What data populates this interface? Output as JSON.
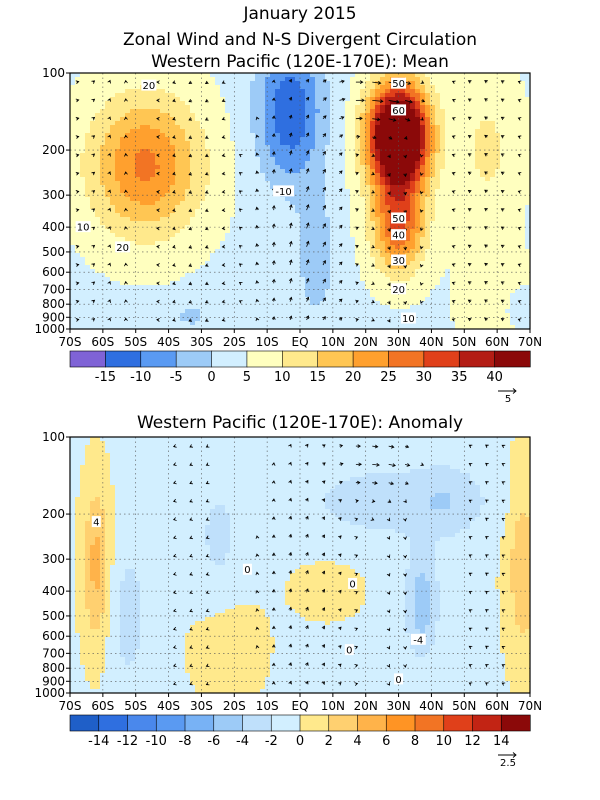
{
  "figure": {
    "title_line1": "January 2015",
    "title_line2": "Zonal Wind and N-S Divergent Circulation"
  },
  "chart_data": [
    {
      "type": "heatmap",
      "title": "Western Pacific (120E-170E): Mean",
      "x_ticks": [
        "70S",
        "60S",
        "50S",
        "40S",
        "30S",
        "20S",
        "10S",
        "EQ",
        "10N",
        "20N",
        "30N",
        "40N",
        "50N",
        "60N",
        "70N"
      ],
      "x_range": [
        -70,
        70
      ],
      "y_ticks": [
        100,
        200,
        300,
        400,
        500,
        600,
        700,
        800,
        900,
        1000
      ],
      "y_scale": "log",
      "y_range": [
        100,
        1000
      ],
      "colorbar_levels": [
        -20,
        -15,
        -10,
        -5,
        0,
        5,
        10,
        15,
        20,
        25,
        30,
        35,
        40,
        45
      ],
      "colorbar_labels": [
        "-15",
        "-10",
        "-5",
        "0",
        "5",
        "10",
        "15",
        "20",
        "25",
        "30",
        "35",
        "40"
      ],
      "colorbar_colors": [
        "#7f63d6",
        "#2f6fe0",
        "#5a9af2",
        "#9dcbf7",
        "#d2efff",
        "#ffffbf",
        "#ffe98c",
        "#ffc653",
        "#ffa02e",
        "#f27424",
        "#e0401a",
        "#b31d14",
        "#8b0909"
      ],
      "contour_labels": [
        "20",
        "10",
        "20",
        "-10",
        "50",
        "60",
        "50",
        "40",
        "30",
        "20",
        "10"
      ],
      "vector_reference": "5",
      "features": [
        {
          "name": "SH westerly max",
          "lat": -47,
          "pressure": 230,
          "value": 22
        },
        {
          "name": "NH subtropical jet",
          "lat": 30,
          "pressure": 180,
          "value": 62
        },
        {
          "name": "Equatorial easterlies",
          "lat": -4,
          "pressure": 150,
          "value": -16
        }
      ]
    },
    {
      "type": "heatmap",
      "title": "Western Pacific (120E-170E): Anomaly",
      "x_ticks": [
        "70S",
        "60S",
        "50S",
        "40S",
        "30S",
        "20S",
        "10S",
        "EQ",
        "10N",
        "20N",
        "30N",
        "40N",
        "50N",
        "60N",
        "70N"
      ],
      "x_range": [
        -70,
        70
      ],
      "y_ticks": [
        100,
        200,
        300,
        400,
        500,
        600,
        700,
        800,
        900,
        1000
      ],
      "y_scale": "log",
      "y_range": [
        100,
        1000
      ],
      "colorbar_levels": [
        -16,
        -14,
        -12,
        -10,
        -8,
        -6,
        -4,
        -2,
        0,
        2,
        4,
        6,
        8,
        10,
        12,
        14,
        16
      ],
      "colorbar_labels": [
        "-14",
        "-12",
        "-10",
        "-8",
        "-6",
        "-4",
        "-2",
        "0",
        "2",
        "4",
        "6",
        "8",
        "10",
        "12",
        "14"
      ],
      "colorbar_colors": [
        "#1f5fc8",
        "#2f6fe0",
        "#4a88ec",
        "#5a9af2",
        "#78b2f5",
        "#9dcbf7",
        "#bfe0fb",
        "#d2efff",
        "#ffe98c",
        "#ffd070",
        "#ffb34a",
        "#ff9424",
        "#f27424",
        "#e0401a",
        "#c22414",
        "#8b0909"
      ],
      "contour_labels": [
        "4",
        "0",
        "0",
        "0",
        "-4",
        "0"
      ],
      "vector_reference": "2.5",
      "features": [
        {
          "name": "SH positive anomaly",
          "lat": -62,
          "pressure": 300,
          "value": 5
        },
        {
          "name": "NH negative anomaly",
          "lat": 37,
          "pressure": 450,
          "value": -5
        },
        {
          "name": "High-lat NH positive anomaly",
          "lat": 68,
          "pressure": 300,
          "value": 5
        }
      ]
    }
  ]
}
